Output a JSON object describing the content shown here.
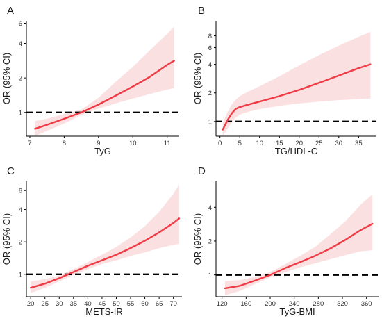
{
  "chart_data": [
    {
      "type": "line",
      "panel_label": "A",
      "xlabel": "TyG",
      "ylabel": "OR (95% CI)",
      "xlim": [
        6.9,
        11.35
      ],
      "ylim": [
        0.62,
        6.3
      ],
      "y_log_scale": true,
      "xticks": [
        7,
        8,
        9,
        10,
        11
      ],
      "yticks": [
        1,
        2,
        4,
        6
      ],
      "reference_line_y": 1,
      "series": [
        {
          "x": [
            7.15,
            7.5,
            8.0,
            8.5,
            9.0,
            9.5,
            10.0,
            10.5,
            11.0,
            11.2
          ],
          "y": [
            0.72,
            0.78,
            0.88,
            1.0,
            1.17,
            1.4,
            1.68,
            2.05,
            2.6,
            2.82
          ],
          "ci_lower": [
            0.62,
            0.69,
            0.8,
            0.95,
            1.08,
            1.2,
            1.32,
            1.45,
            1.58,
            1.63
          ],
          "ci_upper": [
            0.84,
            0.88,
            0.97,
            1.06,
            1.34,
            1.85,
            2.5,
            3.5,
            4.85,
            5.6
          ]
        }
      ]
    },
    {
      "type": "line",
      "panel_label": "B",
      "xlabel": "TG/HDL-C",
      "ylabel": "OR (95% CI)",
      "xlim": [
        -1,
        39.5
      ],
      "ylim": [
        0.7,
        11.5
      ],
      "y_log_scale": true,
      "xticks": [
        0,
        5,
        10,
        15,
        20,
        25,
        30,
        35
      ],
      "yticks": [
        1,
        2,
        4,
        6,
        8
      ],
      "reference_line_y": 1,
      "series": [
        {
          "x": [
            0.7,
            2,
            3,
            4,
            5,
            7,
            10,
            15,
            20,
            25,
            30,
            35,
            38
          ],
          "y": [
            0.82,
            1.05,
            1.22,
            1.36,
            1.42,
            1.5,
            1.62,
            1.85,
            2.15,
            2.55,
            3.05,
            3.65,
            4.0
          ],
          "ci_lower": [
            0.7,
            0.85,
            0.98,
            1.1,
            1.18,
            1.26,
            1.35,
            1.46,
            1.55,
            1.62,
            1.68,
            1.72,
            1.75
          ],
          "ci_upper": [
            0.97,
            1.28,
            1.52,
            1.7,
            1.85,
            2.05,
            2.35,
            3.0,
            3.9,
            5.0,
            6.3,
            7.8,
            8.8
          ]
        }
      ]
    },
    {
      "type": "line",
      "panel_label": "C",
      "xlabel": "METS-IR",
      "ylabel": "OR (95% CI)",
      "xlim": [
        18.5,
        73
      ],
      "ylim": [
        0.62,
        7.3
      ],
      "y_log_scale": true,
      "xticks": [
        20,
        25,
        30,
        35,
        40,
        45,
        50,
        55,
        60,
        65,
        70
      ],
      "yticks": [
        1,
        2,
        4,
        6
      ],
      "reference_line_y": 1,
      "series": [
        {
          "x": [
            20,
            25,
            30,
            35,
            40,
            45,
            50,
            55,
            60,
            65,
            70,
            72
          ],
          "y": [
            0.75,
            0.82,
            0.92,
            1.05,
            1.2,
            1.35,
            1.52,
            1.75,
            2.05,
            2.45,
            3.0,
            3.3
          ],
          "ci_lower": [
            0.67,
            0.75,
            0.86,
            0.99,
            1.12,
            1.24,
            1.35,
            1.48,
            1.6,
            1.75,
            1.88,
            1.92
          ],
          "ci_upper": [
            0.86,
            0.9,
            0.98,
            1.12,
            1.3,
            1.52,
            1.8,
            2.2,
            2.8,
            3.8,
            5.6,
            6.8
          ]
        }
      ]
    },
    {
      "type": "line",
      "panel_label": "D",
      "xlabel": "TyG-BMI",
      "ylabel": "OR (95% CI)",
      "xlim": [
        110,
        380
      ],
      "ylim": [
        0.64,
        6.8
      ],
      "y_log_scale": true,
      "xticks": [
        120,
        160,
        200,
        240,
        280,
        320,
        360
      ],
      "yticks": [
        1,
        2,
        4
      ],
      "reference_line_y": 1,
      "series": [
        {
          "x": [
            125,
            150,
            175,
            200,
            225,
            250,
            275,
            300,
            325,
            350,
            370
          ],
          "y": [
            0.76,
            0.8,
            0.89,
            1.0,
            1.15,
            1.3,
            1.48,
            1.72,
            2.05,
            2.5,
            2.85
          ],
          "ci_lower": [
            0.66,
            0.72,
            0.83,
            0.95,
            1.06,
            1.17,
            1.27,
            1.38,
            1.5,
            1.62,
            1.66
          ],
          "ci_upper": [
            0.88,
            0.9,
            0.96,
            1.06,
            1.25,
            1.48,
            1.78,
            2.3,
            3.0,
            4.2,
            5.2
          ]
        }
      ]
    }
  ]
}
